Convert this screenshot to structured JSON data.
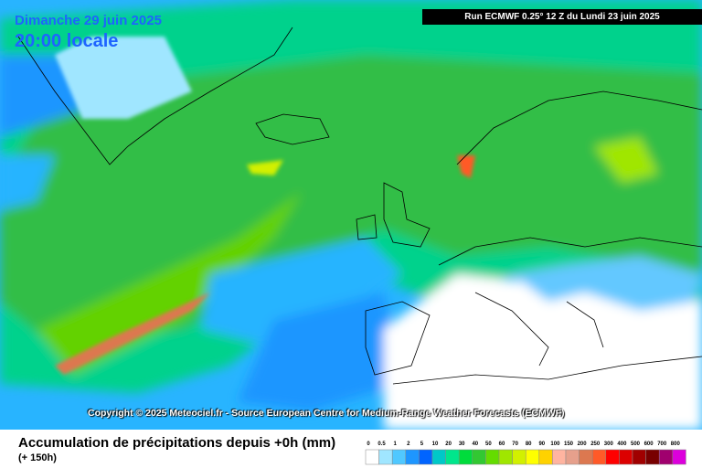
{
  "header": {
    "date": "Dimanche 29 juin 2025",
    "time": "20:00 locale",
    "run": "Run ECMWF 0.25° 12 Z du Lundi 23 juin 2025"
  },
  "copyright": "Copyright © 2025 Meteociel.fr - Source European Centre for Medium-Range Weather Forecasts (ECMWF)",
  "footer": {
    "title": "Accumulation de précipitations depuis +0h (mm)",
    "subtitle": "(+ 150h)"
  },
  "legend": {
    "labels": [
      "0",
      "0.5",
      "1",
      "2",
      "5",
      "10",
      "20",
      "30",
      "40",
      "50",
      "60",
      "70",
      "80",
      "90",
      "100",
      "150",
      "200",
      "250",
      "300",
      "400",
      "500",
      "600",
      "700",
      "800"
    ],
    "colors": [
      "#ffffff",
      "#a0e6ff",
      "#50c8ff",
      "#1e96ff",
      "#0064ff",
      "#00c8c8",
      "#00e68c",
      "#00dc3c",
      "#32c832",
      "#64dc00",
      "#a0e600",
      "#d2f000",
      "#ffff00",
      "#ffd200",
      "#ffb4a0",
      "#e6a08c",
      "#dc7850",
      "#ff5a28",
      "#ff0000",
      "#dc0000",
      "#a00000",
      "#780000",
      "#a0006e",
      "#dc00dc"
    ]
  }
}
